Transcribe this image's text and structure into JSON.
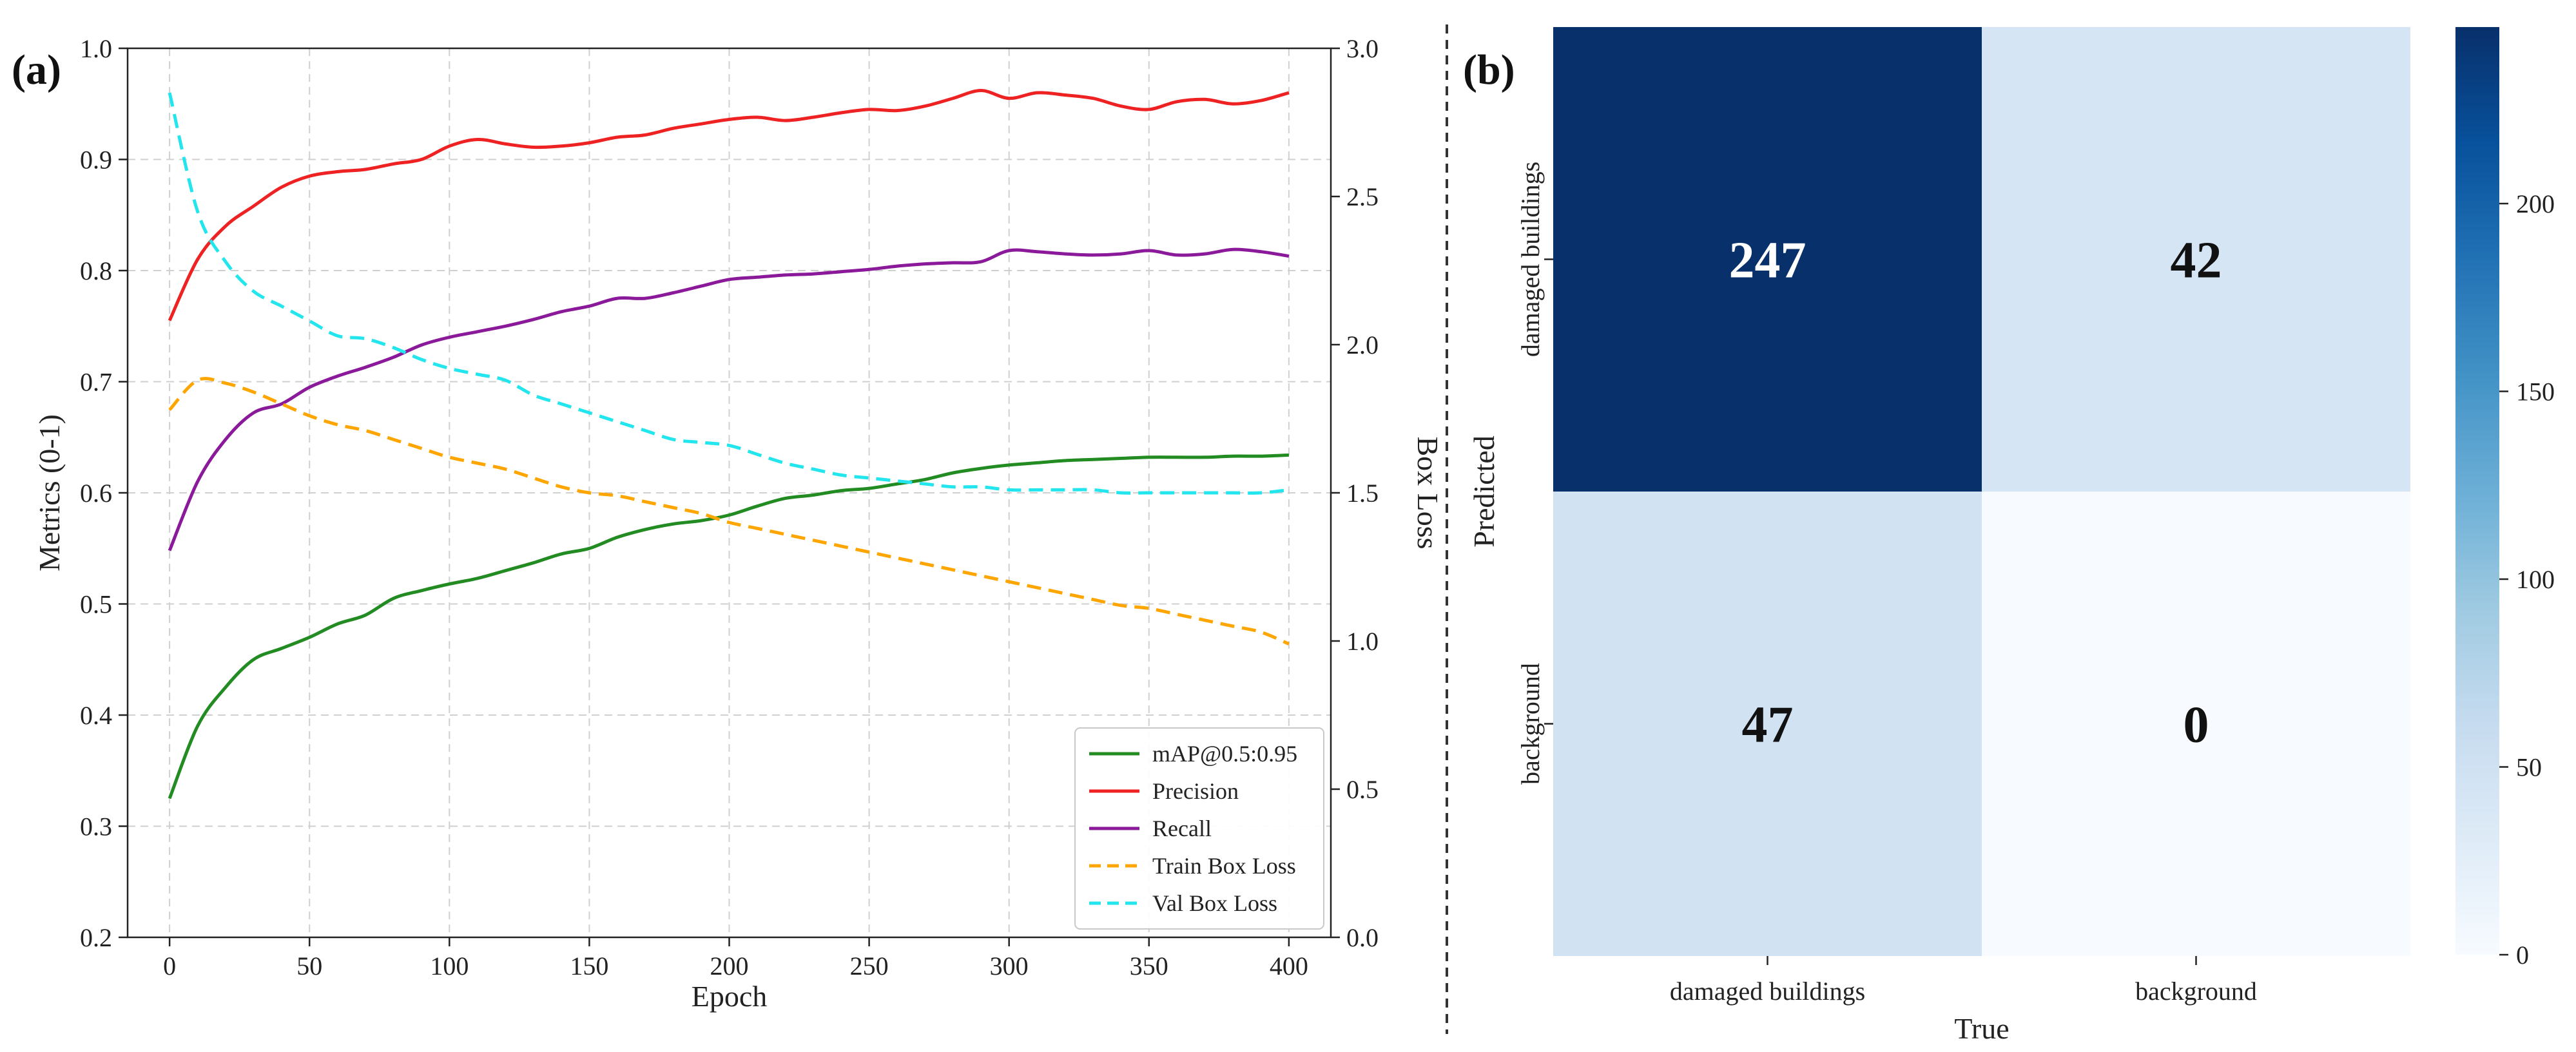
{
  "panels": {
    "a": "(a)",
    "b": "(b)"
  },
  "chart_data": [
    {
      "type": "line",
      "panel": "(a)",
      "xlabel": "Epoch",
      "ylabel": "Metrics (0-1)",
      "y2label": "Box Loss",
      "xlim": [
        -15,
        415
      ],
      "ylim": [
        0.2,
        1.0
      ],
      "y2lim": [
        0.0,
        3.0
      ],
      "xticks": [
        0,
        50,
        100,
        150,
        200,
        250,
        300,
        350,
        400
      ],
      "yticks": [
        "0.2",
        "0.3",
        "0.4",
        "0.5",
        "0.6",
        "0.7",
        "0.8",
        "0.9",
        "1.0"
      ],
      "y2ticks": [
        "0.0",
        "0.5",
        "1.0",
        "1.5",
        "2.0",
        "2.5",
        "3.0"
      ],
      "grid": true,
      "legend_position": "lower-right",
      "x": [
        0,
        10,
        20,
        30,
        40,
        50,
        60,
        70,
        80,
        90,
        100,
        110,
        120,
        130,
        140,
        150,
        160,
        170,
        180,
        190,
        200,
        210,
        220,
        230,
        240,
        250,
        260,
        270,
        280,
        290,
        300,
        310,
        320,
        330,
        340,
        350,
        360,
        370,
        380,
        390,
        400
      ],
      "series": [
        {
          "name": "mAP@0.5:0.95",
          "axis": "left",
          "color": "#228b22",
          "dash": false,
          "values": [
            0.325,
            0.39,
            0.425,
            0.45,
            0.46,
            0.47,
            0.482,
            0.49,
            0.505,
            0.512,
            0.518,
            0.523,
            0.53,
            0.537,
            0.545,
            0.55,
            0.56,
            0.567,
            0.572,
            0.575,
            0.58,
            0.588,
            0.595,
            0.598,
            0.602,
            0.604,
            0.608,
            0.612,
            0.618,
            0.622,
            0.625,
            0.627,
            0.629,
            0.63,
            0.631,
            0.632,
            0.632,
            0.632,
            0.633,
            0.633,
            0.634
          ]
        },
        {
          "name": "Precision",
          "axis": "left",
          "color": "#ee2222",
          "dash": false,
          "values": [
            0.755,
            0.81,
            0.84,
            0.858,
            0.875,
            0.885,
            0.889,
            0.891,
            0.896,
            0.9,
            0.912,
            0.918,
            0.914,
            0.911,
            0.912,
            0.915,
            0.92,
            0.922,
            0.928,
            0.932,
            0.936,
            0.938,
            0.935,
            0.938,
            0.942,
            0.945,
            0.944,
            0.948,
            0.955,
            0.962,
            0.955,
            0.96,
            0.958,
            0.955,
            0.948,
            0.945,
            0.952,
            0.954,
            0.95,
            0.953,
            0.96
          ]
        },
        {
          "name": "Recall",
          "axis": "left",
          "color": "#8b1a9b",
          "dash": false,
          "values": [
            0.548,
            0.61,
            0.648,
            0.672,
            0.68,
            0.695,
            0.705,
            0.713,
            0.722,
            0.733,
            0.74,
            0.745,
            0.75,
            0.756,
            0.763,
            0.768,
            0.775,
            0.775,
            0.78,
            0.786,
            0.792,
            0.794,
            0.796,
            0.797,
            0.799,
            0.801,
            0.804,
            0.806,
            0.807,
            0.808,
            0.818,
            0.817,
            0.815,
            0.814,
            0.815,
            0.818,
            0.814,
            0.815,
            0.819,
            0.817,
            0.813
          ]
        },
        {
          "name": "Train Box Loss",
          "axis": "right",
          "color": "#ffa500",
          "dash": true,
          "values": [
            1.78,
            1.88,
            1.87,
            1.84,
            1.8,
            1.76,
            1.73,
            1.71,
            1.68,
            1.65,
            1.62,
            1.6,
            1.58,
            1.55,
            1.52,
            1.5,
            1.49,
            1.47,
            1.45,
            1.43,
            1.4,
            1.38,
            1.36,
            1.34,
            1.32,
            1.3,
            1.28,
            1.26,
            1.24,
            1.22,
            1.2,
            1.18,
            1.16,
            1.14,
            1.12,
            1.11,
            1.09,
            1.07,
            1.05,
            1.03,
            0.99
          ]
        },
        {
          "name": "Val Box Loss",
          "axis": "right",
          "color": "#22e5ee",
          "dash": true,
          "values": [
            2.85,
            2.45,
            2.28,
            2.18,
            2.13,
            2.08,
            2.03,
            2.02,
            1.99,
            1.95,
            1.92,
            1.9,
            1.88,
            1.83,
            1.8,
            1.77,
            1.74,
            1.71,
            1.68,
            1.67,
            1.66,
            1.63,
            1.6,
            1.58,
            1.56,
            1.55,
            1.54,
            1.53,
            1.52,
            1.52,
            1.51,
            1.51,
            1.51,
            1.51,
            1.5,
            1.5,
            1.5,
            1.5,
            1.5,
            1.5,
            1.51
          ]
        }
      ]
    },
    {
      "type": "heatmap",
      "panel": "(b)",
      "xlabel": "True",
      "ylabel": "Predicted",
      "x_categories": [
        "damaged buildings",
        "background"
      ],
      "y_categories": [
        "damaged buildings",
        "background"
      ],
      "values": [
        [
          247,
          42
        ],
        [
          47,
          0
        ]
      ],
      "colorbar": {
        "min": 0,
        "max": 247,
        "ticks": [
          0,
          50,
          100,
          150,
          200
        ]
      },
      "colormap": [
        "#f7fbff",
        "#deebf7",
        "#c6dbef",
        "#9ecae1",
        "#6baed6",
        "#4292c6",
        "#2171b5",
        "#08519c",
        "#08306b"
      ]
    }
  ]
}
